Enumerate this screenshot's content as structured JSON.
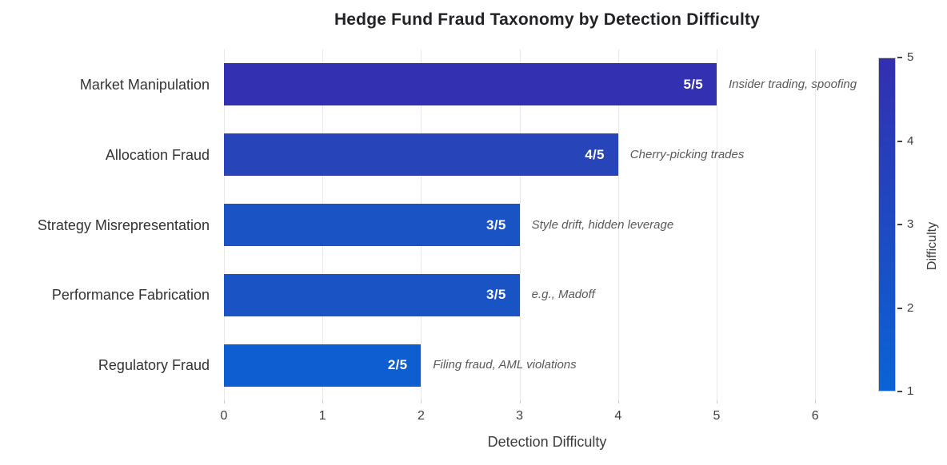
{
  "title": "Hedge Fund Fraud Taxonomy by Detection Difficulty",
  "chart_data": {
    "type": "bar",
    "orientation": "horizontal",
    "title": "Hedge Fund Fraud Taxonomy by Detection Difficulty",
    "categories": [
      "Market Manipulation",
      "Allocation Fraud",
      "Strategy Misrepresentation",
      "Performance Fabrication",
      "Regulatory Fraud"
    ],
    "values": [
      5,
      4,
      3,
      3,
      2
    ],
    "value_labels": [
      "5/5",
      "4/5",
      "3/5",
      "3/5",
      "2/5"
    ],
    "annotations": [
      "Insider trading, spoofing",
      "Cherry-picking trades",
      "Style drift, hidden leverage",
      "e.g., Madoff",
      "Filing fraud, AML violations"
    ],
    "bar_colors": [
      "#3331b1",
      "#2744b8",
      "#1a53c4",
      "#1a53c4",
      "#0e5ed1"
    ],
    "xlabel": "Detection Difficulty",
    "ylabel": "",
    "x_ticks": [
      0,
      1,
      2,
      3,
      4,
      5,
      6
    ],
    "xlim": [
      0,
      6.56
    ],
    "grid": true,
    "background_color": "#ffffff",
    "gridline_color": "#e8e8e8",
    "colorbar": {
      "label": "Difficulty",
      "min": 1,
      "max": 5,
      "ticks": [
        5,
        4,
        3,
        2,
        1
      ],
      "top_color": "#332fb0",
      "bottom_color": "#0a63d6"
    }
  }
}
